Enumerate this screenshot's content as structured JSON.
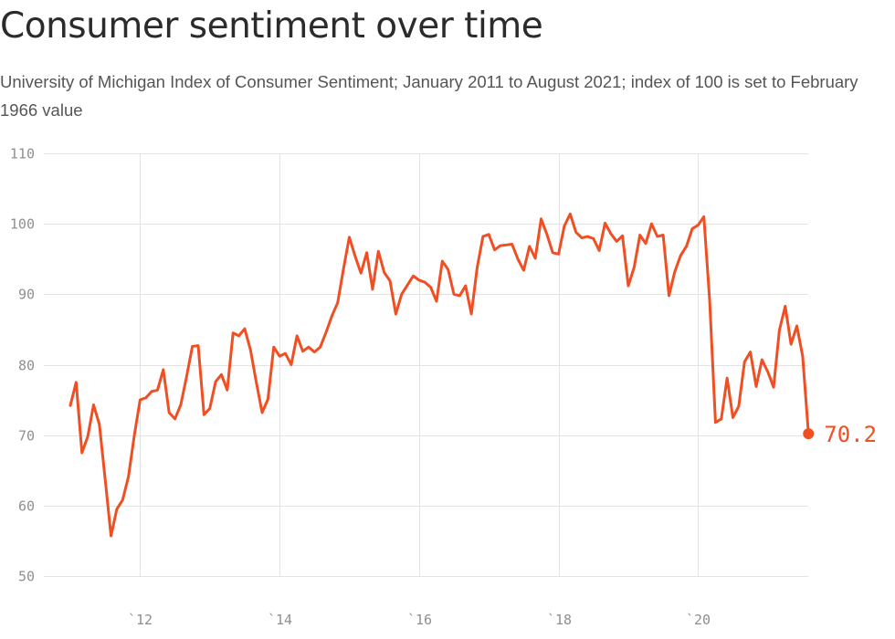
{
  "title": "Consumer sentiment over time",
  "subtitle": "University of Michigan Index of Consumer Sentiment; January 2011 to August 2021; index of 100 is set to February 1966 value",
  "colors": {
    "line": "#f04e23",
    "grid": "#e3e3e3",
    "tick_text": "#8f8f8f"
  },
  "chart_data": {
    "type": "line",
    "title": "Consumer sentiment over time",
    "subtitle": "University of Michigan Index of Consumer Sentiment; January 2011 to August 2021; index of 100 is set to February 1966 value",
    "xlabel": "",
    "ylabel": "",
    "ylim": [
      50,
      110
    ],
    "xlim": [
      2011.0,
      2021.58
    ],
    "yticks": [
      50,
      60,
      70,
      80,
      90,
      100,
      110
    ],
    "y_tick_labels": [
      "50",
      "60",
      "70",
      "80",
      "90",
      "100",
      "110"
    ],
    "xticks": [
      2012,
      2014,
      2016,
      2018,
      2020
    ],
    "x_tick_labels": [
      "`12",
      "`14",
      "`16",
      "`18",
      "`20"
    ],
    "grid": true,
    "legend": "none",
    "end_label": "70.2",
    "series": [
      {
        "start": "2011-01",
        "frequency": "monthly",
        "values": [
          74.2,
          77.5,
          67.5,
          69.8,
          74.3,
          71.5,
          63.7,
          55.7,
          59.5,
          60.8,
          64.1,
          69.9,
          75.0,
          75.3,
          76.2,
          76.4,
          79.3,
          73.2,
          72.3,
          74.3,
          78.3,
          82.6,
          82.7,
          72.9,
          73.8,
          77.6,
          78.6,
          76.4,
          84.5,
          84.1,
          85.1,
          82.1,
          77.5,
          73.2,
          75.1,
          82.5,
          81.2,
          81.6,
          80.0,
          84.1,
          81.9,
          82.5,
          81.8,
          82.5,
          84.6,
          86.9,
          88.8,
          93.6,
          98.1,
          95.4,
          93.0,
          95.9,
          90.7,
          96.1,
          93.1,
          91.9,
          87.2,
          90.0,
          91.3,
          92.6,
          92.0,
          91.7,
          91.0,
          89.0,
          94.7,
          93.5,
          90.0,
          89.8,
          91.2,
          87.2,
          93.8,
          98.2,
          98.5,
          96.3,
          96.9,
          97.0,
          97.1,
          95.0,
          93.4,
          96.8,
          95.1,
          100.7,
          98.5,
          95.9,
          95.7,
          99.7,
          101.4,
          98.8,
          98.0,
          98.2,
          97.9,
          96.2,
          100.1,
          98.6,
          97.5,
          98.3,
          91.2,
          93.8,
          98.4,
          97.2,
          100.0,
          98.2,
          98.4,
          89.8,
          93.2,
          95.5,
          96.8,
          99.3,
          99.8,
          101.0,
          89.1,
          71.8,
          72.3,
          78.1,
          72.5,
          74.1,
          80.4,
          81.8,
          76.9,
          80.7,
          79.0,
          76.8,
          84.9,
          88.3,
          82.9,
          85.5,
          81.2,
          70.2
        ]
      }
    ]
  }
}
